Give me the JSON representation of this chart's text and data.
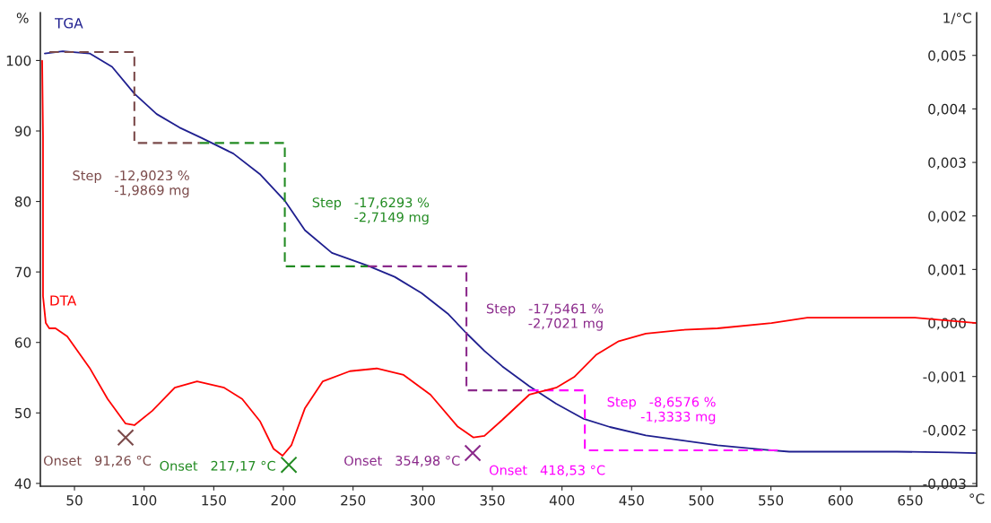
{
  "chart_data": {
    "type": "line",
    "xlim": [
      25.5,
      697.7
    ],
    "xticks": [
      50,
      100,
      150,
      200,
      250,
      300,
      350,
      400,
      450,
      500,
      550,
      600,
      650
    ],
    "xlabel": "°C",
    "ylim": [
      39.6,
      106.8
    ],
    "yticks": [
      40,
      50,
      60,
      70,
      80,
      90,
      100
    ],
    "ylabel": "%",
    "y2lim": [
      -0.00305,
      0.0058
    ],
    "y2label": "1/°C",
    "y2ticks": [
      {
        "value": -0.003,
        "label": "-0,003"
      },
      {
        "value": -0.002,
        "label": "-0,002"
      },
      {
        "value": -0.001,
        "label": "-0,001"
      },
      {
        "value": 0.0,
        "label": "0,000"
      },
      {
        "value": 0.001,
        "label": "0,001"
      },
      {
        "value": 0.002,
        "label": "0,002"
      },
      {
        "value": 0.003,
        "label": "0,003"
      },
      {
        "value": 0.004,
        "label": "0,004"
      },
      {
        "value": 0.005,
        "label": "0,005"
      }
    ],
    "series": [
      {
        "name": "TGA",
        "color": "#1f1f8f",
        "x": [
          28.7,
          41.6,
          60.9,
          77,
          93,
          109,
          125.3,
          141.4,
          164,
          183,
          201,
          215.5,
          234.8,
          260.5,
          279.9,
          299.2,
          318.5,
          331.4,
          344.3,
          357.2,
          376.5,
          395.8,
          415.1,
          434.4,
          460.2,
          486,
          511.7,
          543.9,
          563.2,
          640.5,
          679,
          697.7
        ],
        "values": [
          101,
          101.3,
          101,
          99.1,
          95.3,
          92.4,
          90.5,
          89,
          86.8,
          83.9,
          80.1,
          75.9,
          72.7,
          70.9,
          69.3,
          67,
          64,
          61.3,
          58.8,
          56.6,
          53.8,
          51.3,
          49.2,
          48,
          46.8,
          46.1,
          45.4,
          44.8,
          44.5,
          44.5,
          44.4,
          44.3
        ]
      },
      {
        "name": "DTA",
        "color": "#ff0000",
        "axis": "y2",
        "x": [
          26.8,
          27.4,
          27.4,
          29.4,
          31.9,
          36.4,
          44.8,
          60.9,
          73.8,
          86.7,
          93,
          105.9,
          122,
          138,
          157.5,
          170.4,
          183.3,
          192.9,
          199.4,
          205.8,
          215.5,
          228.3,
          247.7,
          267,
          286.3,
          305.6,
          324.9,
          336.5,
          344.3,
          357.2,
          376.5,
          395.8,
          408.7,
          424.8,
          440.8,
          460.2,
          486,
          511.7,
          550.4,
          576.1,
          608.3,
          653.4,
          697.7
        ],
        "values": [
          0.0049,
          0.0035,
          0.0005,
          0.0,
          -0.0001,
          -0.0001,
          -0.00025,
          -0.00084,
          -0.00142,
          -0.00188,
          -0.00191,
          -0.00164,
          -0.00121,
          -0.00109,
          -0.00121,
          -0.00142,
          -0.00184,
          -0.00235,
          -0.00248,
          -0.00228,
          -0.00159,
          -0.00109,
          -0.0009,
          -0.00085,
          -0.00097,
          -0.00134,
          -0.00193,
          -0.00214,
          -0.00211,
          -0.00181,
          -0.00134,
          -0.00121,
          -0.00101,
          -0.00059,
          -0.00034,
          -0.0002,
          -0.00013,
          -0.0001,
          0,
          0.0001,
          0.0001,
          0.0001,
          0.0
        ]
      },
      {
        "color": "#7b4a4a",
        "line_style": "dashed",
        "x": [
          32,
          93,
          93,
          140
        ],
        "values": [
          101.2,
          101.2,
          88.3,
          88.3
        ]
      },
      {
        "color": "#228b22",
        "line_style": "dashed",
        "x": [
          140,
          201,
          201,
          260.5
        ],
        "values": [
          88.3,
          88.3,
          70.8,
          70.8
        ]
      },
      {
        "color": "#8b2a8b",
        "line_style": "dashed",
        "x": [
          260.5,
          331.4,
          331.4,
          376.5
        ],
        "values": [
          70.8,
          70.8,
          53.2,
          53.2
        ]
      },
      {
        "color": "#ff00ff",
        "line_style": "dashed",
        "x": [
          376.5,
          416.4,
          416.4,
          555
        ],
        "values": [
          53.2,
          53.2,
          44.7,
          44.7
        ]
      },
      {
        "type": "scatter",
        "marker": "cross",
        "axis": "y2",
        "color": "#7b4a4a",
        "x": [
          86.7
        ],
        "values": [
          -0.00214
        ]
      },
      {
        "type": "scatter",
        "marker": "cross",
        "axis": "y2",
        "color": "#228b22",
        "x": [
          203.9
        ],
        "values": [
          -0.00265
        ]
      },
      {
        "type": "scatter",
        "marker": "cross",
        "axis": "y2",
        "color": "#8b2a8b",
        "x": [
          335.9
        ],
        "values": [
          -0.00243
        ]
      }
    ],
    "annotations": [
      "Step   -12,9023 %\n-1,9869 mg",
      "Step   -17,6293 %\n-2,7149 mg",
      "Step   -17,5461 %\n-2,7021 mg",
      "Step   -8,6576 %\n-1,3333 mg",
      "Onset   91,26 °C",
      "Onset   217,17 °C",
      "Onset   354,98 °C",
      "Onset   418,53 °C"
    ]
  }
}
